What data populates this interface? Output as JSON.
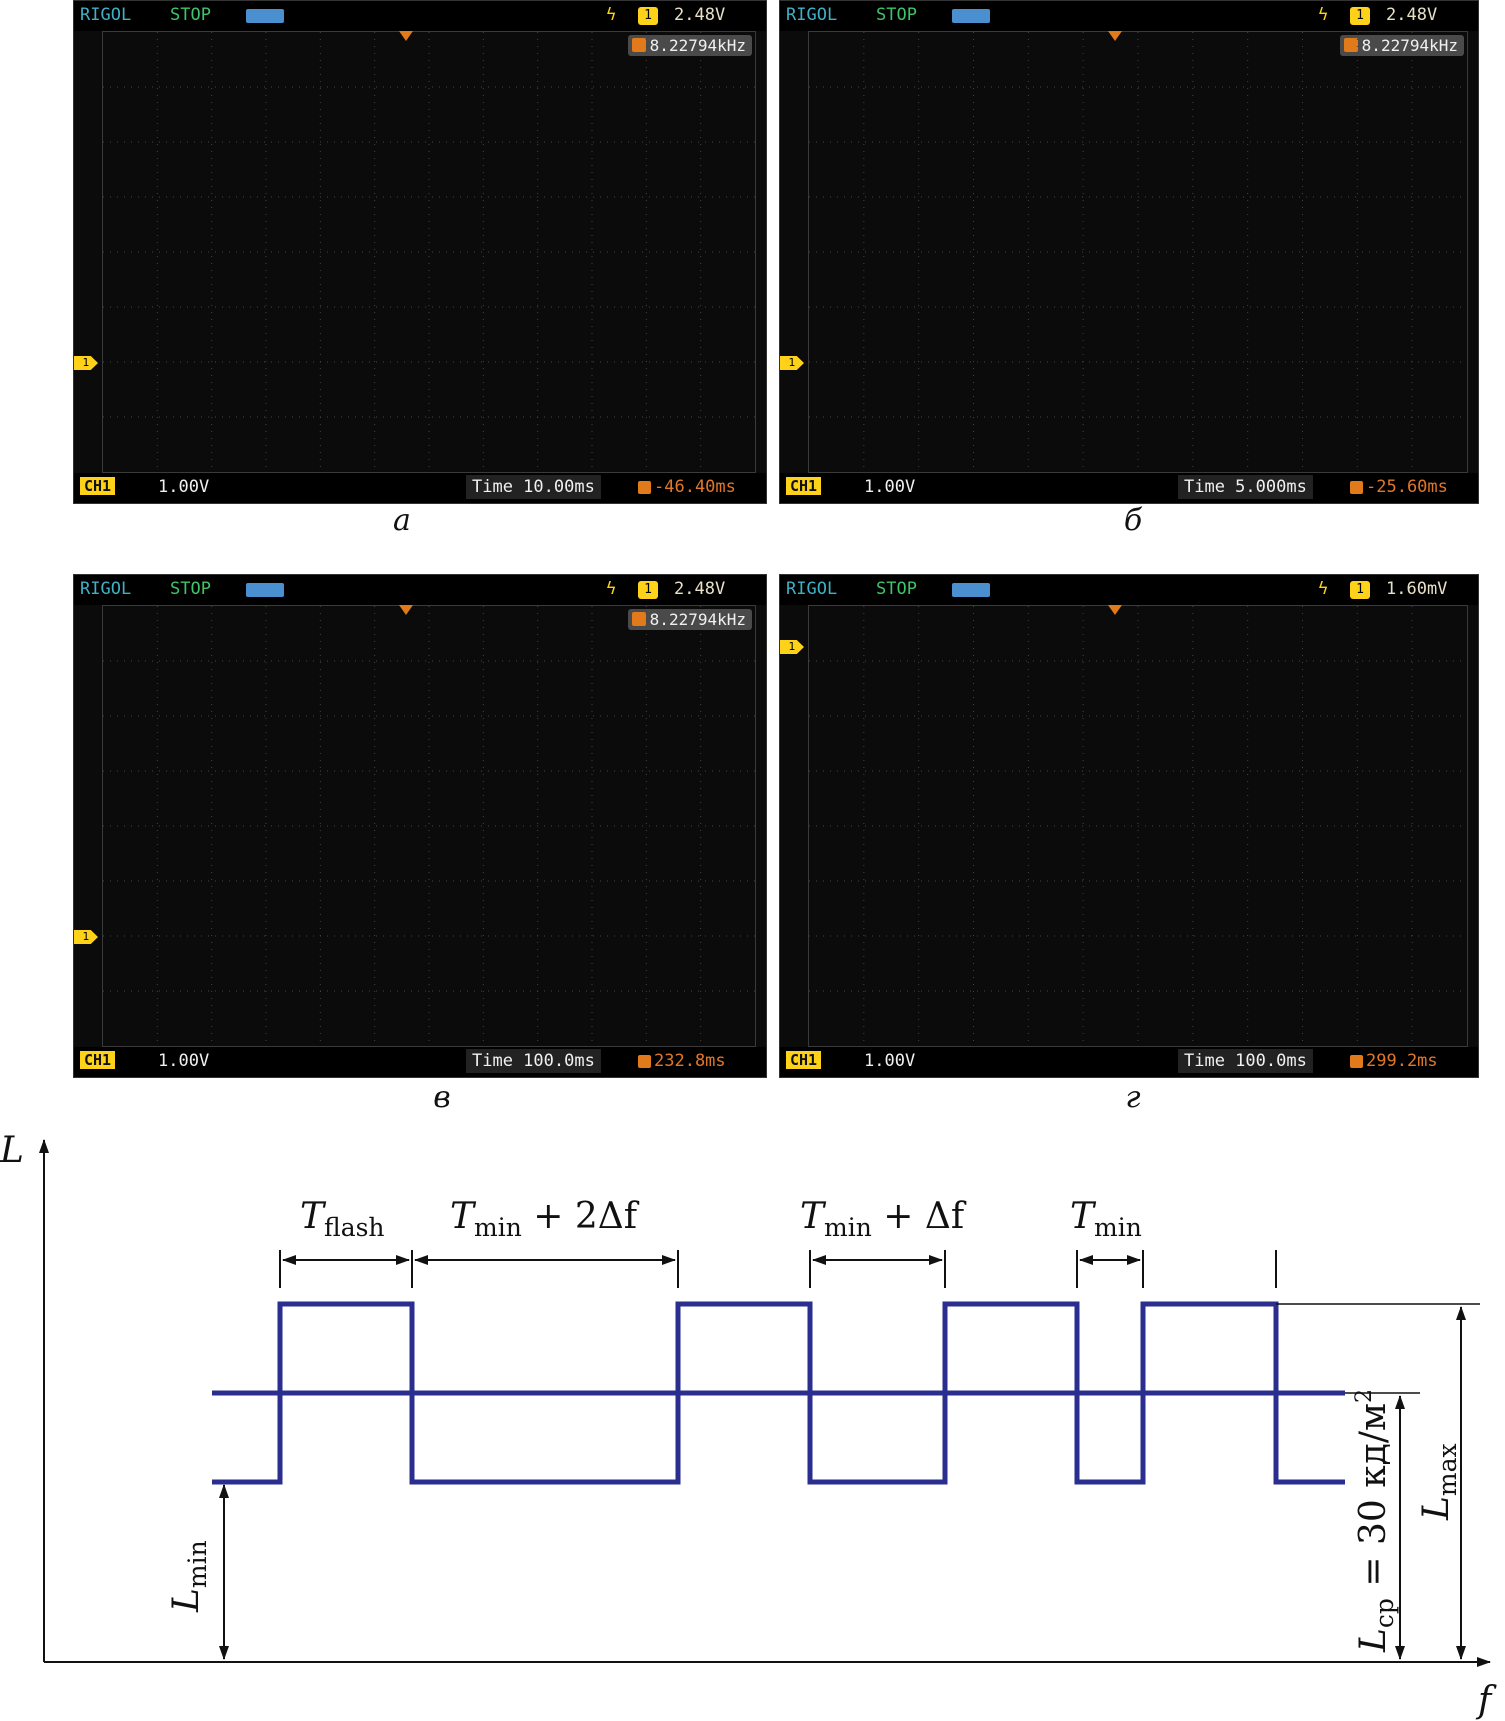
{
  "panels": [
    {
      "caption": "а",
      "brand": "RIGOL",
      "state": "STOP",
      "trig_level": "2.48V",
      "frequency": "8.22794kHz",
      "channel": "CH1",
      "volts": "1.00V",
      "time": "Time 10.00ms",
      "offset": "-46.40ms"
    },
    {
      "caption": "б",
      "brand": "RIGOL",
      "state": "STOP",
      "trig_level": "2.48V",
      "frequency": "8.22794kHz",
      "channel": "CH1",
      "volts": "1.00V",
      "time": "Time 5.000ms",
      "offset": "-25.60ms"
    },
    {
      "caption": "в",
      "brand": "RIGOL",
      "state": "STOP",
      "trig_level": "2.48V",
      "frequency": "8.22794kHz",
      "channel": "CH1",
      "volts": "1.00V",
      "time": "Time 100.0ms",
      "offset": "232.8ms"
    },
    {
      "caption": "г",
      "brand": "RIGOL",
      "state": "STOP",
      "trig_level": "1.60mV",
      "frequency": "",
      "channel": "CH1",
      "volts": "1.00V",
      "time": "Time 100.0ms",
      "offset": "299.2ms"
    }
  ],
  "diagram": {
    "y_axis": "L",
    "x_axis": "f",
    "t_flash": "T",
    "t_flash_sub": "flash",
    "t_min_2df": "T",
    "t_min_2df_sub": "min",
    "t_min_2df_rest": " + 2Δf",
    "t_min_df": "T",
    "t_min_df_sub": "min",
    "t_min_df_rest": " + Δf",
    "t_min": "T",
    "t_min_sub": "min",
    "l_min": "L",
    "l_min_sub": "min",
    "l_max": "L",
    "l_max_sub": "max",
    "l_avg": "L",
    "l_avg_sub": "ср",
    "l_avg_rest": " = 30 кд/м",
    "l_avg_sup": "2",
    "line_color": "#2a2e8f"
  }
}
